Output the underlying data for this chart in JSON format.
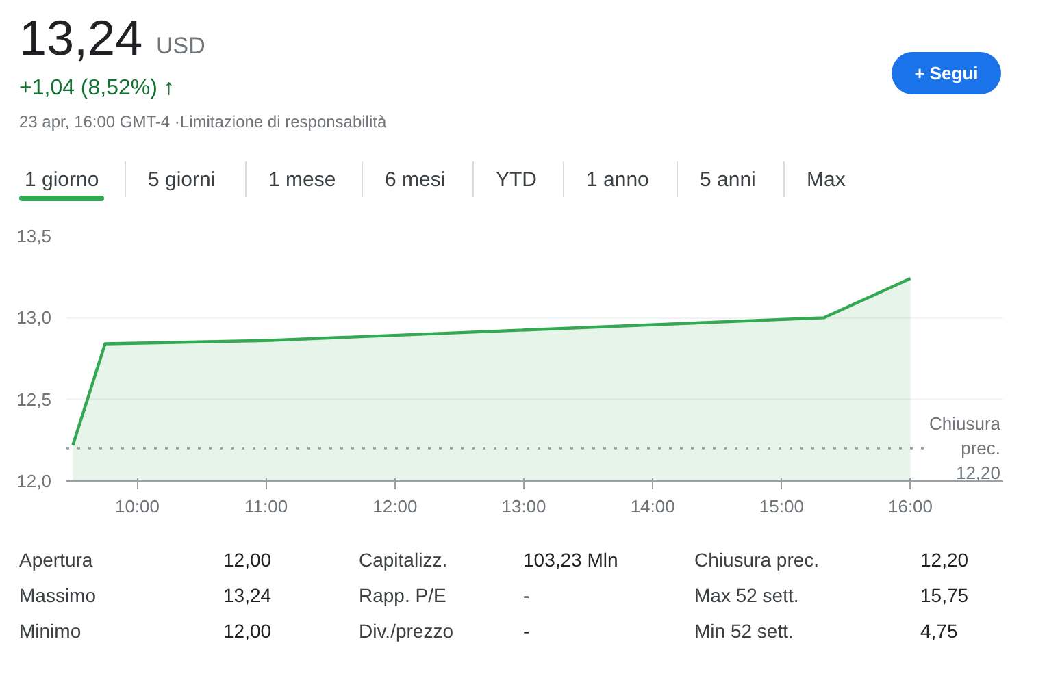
{
  "chart_data": {
    "type": "area",
    "x": [
      9.5,
      9.75,
      11.0,
      15.33,
      16.0
    ],
    "series": [
      {
        "color": "#34a853",
        "values": [
          12.22,
          12.84,
          12.86,
          13.0,
          13.24
        ]
      }
    ],
    "xlim": [
      9.45,
      16.72
    ],
    "ylim": [
      12.0,
      13.5
    ],
    "xticks": [
      {
        "value": 10,
        "label": "10:00"
      },
      {
        "value": 11,
        "label": "11:00"
      },
      {
        "value": 12,
        "label": "12:00"
      },
      {
        "value": 13,
        "label": "13:00"
      },
      {
        "value": 14,
        "label": "14:00"
      },
      {
        "value": 15,
        "label": "15:00"
      },
      {
        "value": 16,
        "label": "16:00"
      }
    ],
    "yticks": [
      {
        "value": 12.0,
        "label": "12,0"
      },
      {
        "value": 12.5,
        "label": "12,5"
      },
      {
        "value": 13.0,
        "label": "13,0"
      },
      {
        "value": 13.5,
        "label": "13,5"
      }
    ],
    "grid": "y",
    "ref_lines": [
      {
        "axis": "y",
        "value": 12.2,
        "label": "Chiusura prec. 12,20",
        "line_style": "dotted",
        "color": "#9aa0a6"
      }
    ],
    "annotations": [
      "13,24",
      "USD",
      "+1,04 (8,52%) ↑",
      "23 apr, 16:00 GMT-4 ·Limitazione di responsabilità",
      "+ Segui",
      "1 giorno",
      "5 giorni",
      "1 mese",
      "6 mesi",
      "YTD",
      "1 anno",
      "5 anni",
      "Max",
      "Apertura",
      "12,00",
      "Capitalizz.",
      "103,23 Mln",
      "Chiusura prec.",
      "12,20",
      "Massimo",
      "13,24",
      "Rapp. P/E",
      "-",
      "Max 52 sett.",
      "15,75",
      "Minimo",
      "12,00",
      "Div./prezzo",
      "-",
      "Min 52 sett.",
      "4,75"
    ]
  }
}
